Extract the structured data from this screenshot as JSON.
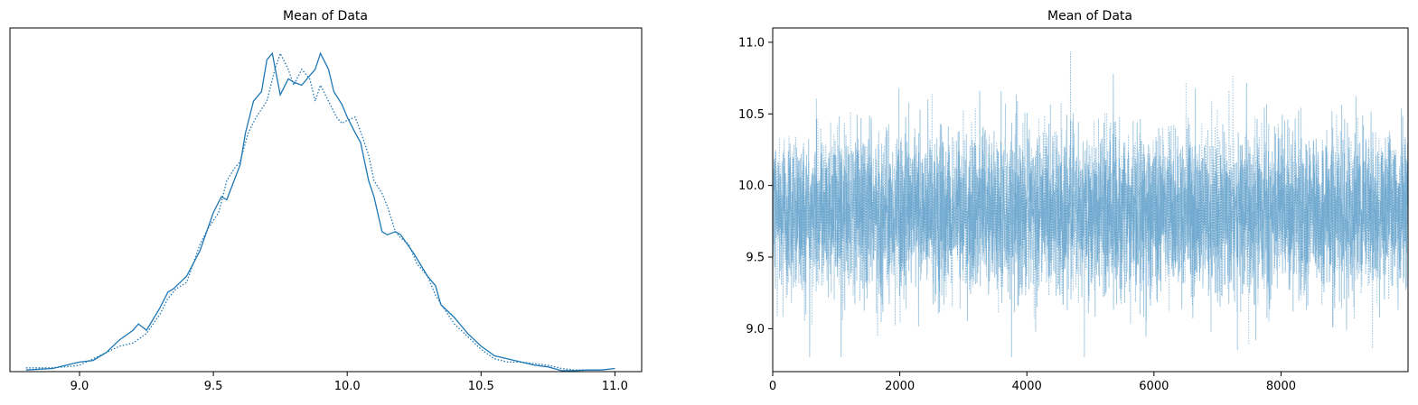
{
  "chart_data": [
    {
      "type": "line",
      "title": "Mean of Data",
      "xlabel": "",
      "ylabel": "",
      "xlim": [
        8.74,
        11.1
      ],
      "ylim": [
        0,
        1.08
      ],
      "x_ticks": [
        "9.0",
        "9.5",
        "10.0",
        "10.5",
        "11.0"
      ],
      "x_tick_values": [
        9.0,
        9.5,
        10.0,
        10.5,
        11.0
      ],
      "y_ticks": [],
      "grid": false,
      "legend": "none",
      "series": [
        {
          "style": "solid",
          "color": "#1f77b4",
          "x": [
            8.8,
            8.9,
            8.95,
            9.0,
            9.05,
            9.1,
            9.15,
            9.2,
            9.22,
            9.25,
            9.3,
            9.33,
            9.35,
            9.4,
            9.45,
            9.5,
            9.53,
            9.55,
            9.6,
            9.62,
            9.65,
            9.68,
            9.7,
            9.72,
            9.75,
            9.78,
            9.8,
            9.83,
            9.86,
            9.88,
            9.9,
            9.93,
            9.95,
            9.98,
            10.0,
            10.03,
            10.05,
            10.08,
            10.1,
            10.13,
            10.15,
            10.18,
            10.2,
            10.25,
            10.3,
            10.33,
            10.35,
            10.4,
            10.45,
            10.5,
            10.55,
            10.6,
            10.65,
            10.7,
            10.75,
            10.8,
            10.85,
            10.9,
            10.95,
            11.0
          ],
          "y": [
            0.005,
            0.01,
            0.02,
            0.03,
            0.035,
            0.06,
            0.1,
            0.13,
            0.15,
            0.13,
            0.2,
            0.25,
            0.26,
            0.3,
            0.38,
            0.5,
            0.55,
            0.54,
            0.65,
            0.75,
            0.85,
            0.88,
            0.98,
            1.0,
            0.87,
            0.92,
            0.91,
            0.9,
            0.93,
            0.95,
            1.0,
            0.95,
            0.88,
            0.84,
            0.8,
            0.75,
            0.72,
            0.6,
            0.55,
            0.44,
            0.43,
            0.44,
            0.43,
            0.37,
            0.3,
            0.27,
            0.21,
            0.17,
            0.12,
            0.08,
            0.05,
            0.04,
            0.03,
            0.02,
            0.015,
            0.003,
            0.003,
            0.005,
            0.005,
            0.01
          ]
        },
        {
          "style": "dotted",
          "color": "#1f77b4",
          "x": [
            8.8,
            8.9,
            8.95,
            9.0,
            9.05,
            9.1,
            9.15,
            9.2,
            9.25,
            9.3,
            9.33,
            9.36,
            9.4,
            9.45,
            9.48,
            9.52,
            9.55,
            9.58,
            9.6,
            9.63,
            9.66,
            9.7,
            9.73,
            9.75,
            9.78,
            9.8,
            9.83,
            9.86,
            9.88,
            9.9,
            9.93,
            9.96,
            9.98,
            10.0,
            10.03,
            10.06,
            10.08,
            10.1,
            10.13,
            10.15,
            10.18,
            10.2,
            10.23,
            10.26,
            10.3,
            10.33,
            10.36,
            10.4,
            10.45,
            10.5,
            10.55,
            10.6,
            10.65,
            10.7,
            10.75,
            10.8,
            10.85,
            10.9,
            10.95
          ],
          "y": [
            0.012,
            0.012,
            0.015,
            0.02,
            0.04,
            0.06,
            0.08,
            0.09,
            0.12,
            0.18,
            0.23,
            0.26,
            0.28,
            0.4,
            0.45,
            0.5,
            0.6,
            0.64,
            0.66,
            0.75,
            0.8,
            0.85,
            0.95,
            1.0,
            0.95,
            0.9,
            0.95,
            0.92,
            0.85,
            0.9,
            0.85,
            0.8,
            0.78,
            0.79,
            0.8,
            0.73,
            0.68,
            0.6,
            0.56,
            0.52,
            0.44,
            0.42,
            0.4,
            0.34,
            0.3,
            0.24,
            0.2,
            0.15,
            0.11,
            0.07,
            0.04,
            0.03,
            0.03,
            0.025,
            0.02,
            0.01,
            0.005,
            0.005,
            0.005
          ]
        }
      ]
    },
    {
      "type": "line",
      "title": "Mean of Data",
      "xlabel": "",
      "ylabel": "",
      "xlim": [
        0,
        9999
      ],
      "ylim": [
        8.7,
        11.1
      ],
      "x_ticks": [
        "0",
        "2000",
        "4000",
        "6000",
        "8000"
      ],
      "x_tick_values": [
        0,
        2000,
        4000,
        6000,
        8000
      ],
      "y_ticks": [
        "9.0",
        "9.5",
        "10.0",
        "10.5",
        "11.0"
      ],
      "y_tick_values": [
        9.0,
        9.5,
        10.0,
        10.5,
        11.0
      ],
      "grid": false,
      "legend": "none",
      "series": [
        {
          "style": "solid",
          "color": "#1f77b4",
          "opacity": 0.4,
          "n_samples": 10000,
          "mean": 9.82,
          "sd": 0.28,
          "min": 8.8,
          "max": 11.0
        },
        {
          "style": "dotted",
          "color": "#1f77b4",
          "opacity": 0.4,
          "n_samples": 10000,
          "mean": 9.82,
          "sd": 0.28,
          "min": 8.8,
          "max": 10.95
        }
      ]
    }
  ]
}
